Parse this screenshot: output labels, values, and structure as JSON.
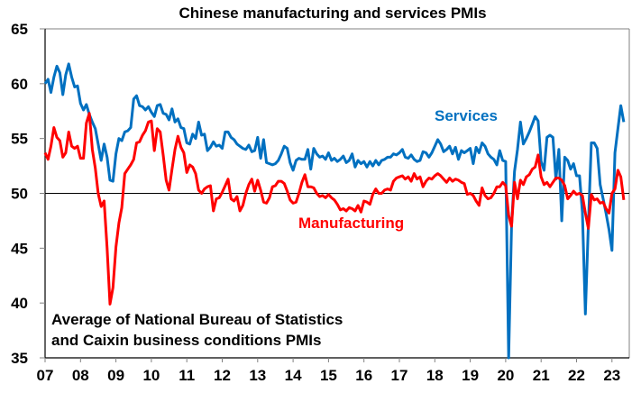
{
  "chart_data": {
    "type": "line",
    "title": "Chinese manufacturing and services PMIs",
    "xlabel": "",
    "ylabel": "",
    "ylim": [
      35,
      65
    ],
    "yticks": [
      35,
      40,
      45,
      50,
      55,
      60,
      65
    ],
    "xticks": [
      "07",
      "08",
      "09",
      "10",
      "11",
      "12",
      "13",
      "14",
      "15",
      "16",
      "17",
      "18",
      "19",
      "20",
      "21",
      "22",
      "23"
    ],
    "x_start": "2007-01",
    "frequency": "monthly",
    "reference_line": 50,
    "annotation": [
      "Average of National Bureau of Statistics",
      "and Caixin business conditions PMIs"
    ],
    "grid": false,
    "series": [
      {
        "name": "Services",
        "color": "#0070C0",
        "values": [
          60.0,
          60.4,
          59.2,
          60.6,
          61.6,
          61.0,
          59.0,
          60.8,
          61.8,
          60.6,
          59.7,
          59.8,
          58.2,
          57.6,
          58.1,
          57.2,
          56.5,
          55.9,
          54.5,
          53.0,
          54.5,
          53.3,
          51.2,
          51.1,
          53.6,
          55.0,
          54.8,
          55.6,
          55.7,
          56.0,
          58.6,
          58.9,
          58.0,
          57.9,
          57.6,
          57.9,
          57.4,
          57.0,
          58.0,
          58.1,
          57.3,
          57.2,
          56.7,
          57.7,
          56.5,
          56.8,
          56.0,
          55.9,
          54.6,
          54.5,
          55.4,
          55.0,
          56.5,
          55.3,
          55.4,
          53.9,
          54.2,
          54.7,
          54.3,
          54.4,
          54.1,
          55.6,
          55.6,
          55.1,
          54.9,
          54.5,
          54.3,
          54.1,
          54.0,
          54.4,
          53.8,
          53.9,
          55.1,
          53.2,
          54.9,
          52.8,
          52.7,
          52.6,
          52.7,
          53.0,
          53.6,
          54.3,
          54.1,
          52.8,
          52.1,
          53.0,
          53.2,
          53.1,
          53.1,
          54.0,
          52.2,
          54.1,
          53.6,
          53.3,
          53.4,
          53.1,
          53.7,
          53.0,
          53.2,
          52.9,
          53.1,
          53.4,
          52.8,
          53.0,
          53.6,
          52.4,
          53.0,
          52.7,
          52.9,
          52.4,
          52.9,
          52.5,
          53.0,
          52.6,
          53.0,
          53.1,
          53.3,
          53.3,
          53.6,
          53.5,
          53.7,
          54.0,
          53.3,
          53.2,
          53.5,
          53.1,
          52.9,
          53.0,
          53.8,
          53.7,
          53.3,
          53.7,
          54.3,
          54.9,
          54.5,
          53.8,
          54.0,
          54.3,
          53.6,
          54.2,
          53.1,
          53.9,
          53.7,
          53.9,
          54.1,
          52.7,
          54.2,
          53.7,
          54.6,
          54.3,
          53.6,
          53.3,
          53.1,
          52.6,
          53.9,
          53.0,
          52.9,
          35.0,
          47.0,
          52.0,
          54.0,
          56.5,
          54.5,
          55.0,
          55.6,
          56.3,
          57.0,
          56.6,
          52.9,
          52.1,
          55.1,
          55.3,
          55.1,
          51.3,
          54.0,
          47.5,
          53.3,
          53.0,
          52.2,
          52.7,
          51.6,
          51.6,
          48.3,
          39.0,
          47.1,
          54.6,
          54.6,
          54.1,
          50.8,
          49.5,
          48.2,
          46.7,
          44.8,
          53.7,
          55.9,
          58.0,
          56.5
        ]
      },
      {
        "name": "Manufacturing",
        "color": "#FF0000",
        "values": [
          53.7,
          53.1,
          54.3,
          56.0,
          55.1,
          54.8,
          53.3,
          53.7,
          55.6,
          54.3,
          54.1,
          54.3,
          53.2,
          53.2,
          56.4,
          57.3,
          54.0,
          52.3,
          50.0,
          48.8,
          49.3,
          45.0,
          39.9,
          41.4,
          45.1,
          47.3,
          48.7,
          51.8,
          52.2,
          52.6,
          53.1,
          54.6,
          54.7,
          55.3,
          55.7,
          56.5,
          56.6,
          53.9,
          55.9,
          55.6,
          53.5,
          51.2,
          50.3,
          52.2,
          54.0,
          55.2,
          54.2,
          53.7,
          51.9,
          52.6,
          52.4,
          51.8,
          50.3,
          50.0,
          50.4,
          50.6,
          50.7,
          48.4,
          49.5,
          49.6,
          50.1,
          50.7,
          51.3,
          49.5,
          49.3,
          49.7,
          48.4,
          48.9,
          50.0,
          50.8,
          51.3,
          50.2,
          51.2,
          50.3,
          49.2,
          49.1,
          49.6,
          50.6,
          50.7,
          51.1,
          51.1,
          50.9,
          50.2,
          49.4,
          49.1,
          49.2,
          50.0,
          51.0,
          51.7,
          50.6,
          50.6,
          50.5,
          50.0,
          49.7,
          49.8,
          49.6,
          49.9,
          49.6,
          49.4,
          49.0,
          48.5,
          48.6,
          48.4,
          48.7,
          48.6,
          48.4,
          48.9,
          48.3,
          49.3,
          49.2,
          49.0,
          49.9,
          50.4,
          50.0,
          50.0,
          50.3,
          50.4,
          50.3,
          51.1,
          51.4,
          51.5,
          51.6,
          51.3,
          51.5,
          51.1,
          51.8,
          51.3,
          51.5,
          50.6,
          51.1,
          51.4,
          51.3,
          51.6,
          51.8,
          51.6,
          51.3,
          51.0,
          51.4,
          51.1,
          51.3,
          51.2,
          51.0,
          50.9,
          49.9,
          50.0,
          49.8,
          49.3,
          48.9,
          50.5,
          49.8,
          49.5,
          49.6,
          50.0,
          50.6,
          50.6,
          51.0,
          50.7,
          48.0,
          47.0,
          51.0,
          49.5,
          51.2,
          50.8,
          51.5,
          51.7,
          52.2,
          52.4,
          53.5,
          51.5,
          50.8,
          51.0,
          50.6,
          51.0,
          51.4,
          51.4,
          51.2,
          50.7,
          49.5,
          49.8,
          50.2,
          49.9,
          50.0,
          49.8,
          48.2,
          46.8,
          49.9,
          49.4,
          49.5,
          49.1,
          49.2,
          48.6,
          48.2,
          50.0,
          50.4,
          52.1,
          51.5,
          49.4
        ]
      }
    ],
    "series_labels": {
      "services": "Services",
      "manufacturing": "Manufacturing"
    }
  }
}
